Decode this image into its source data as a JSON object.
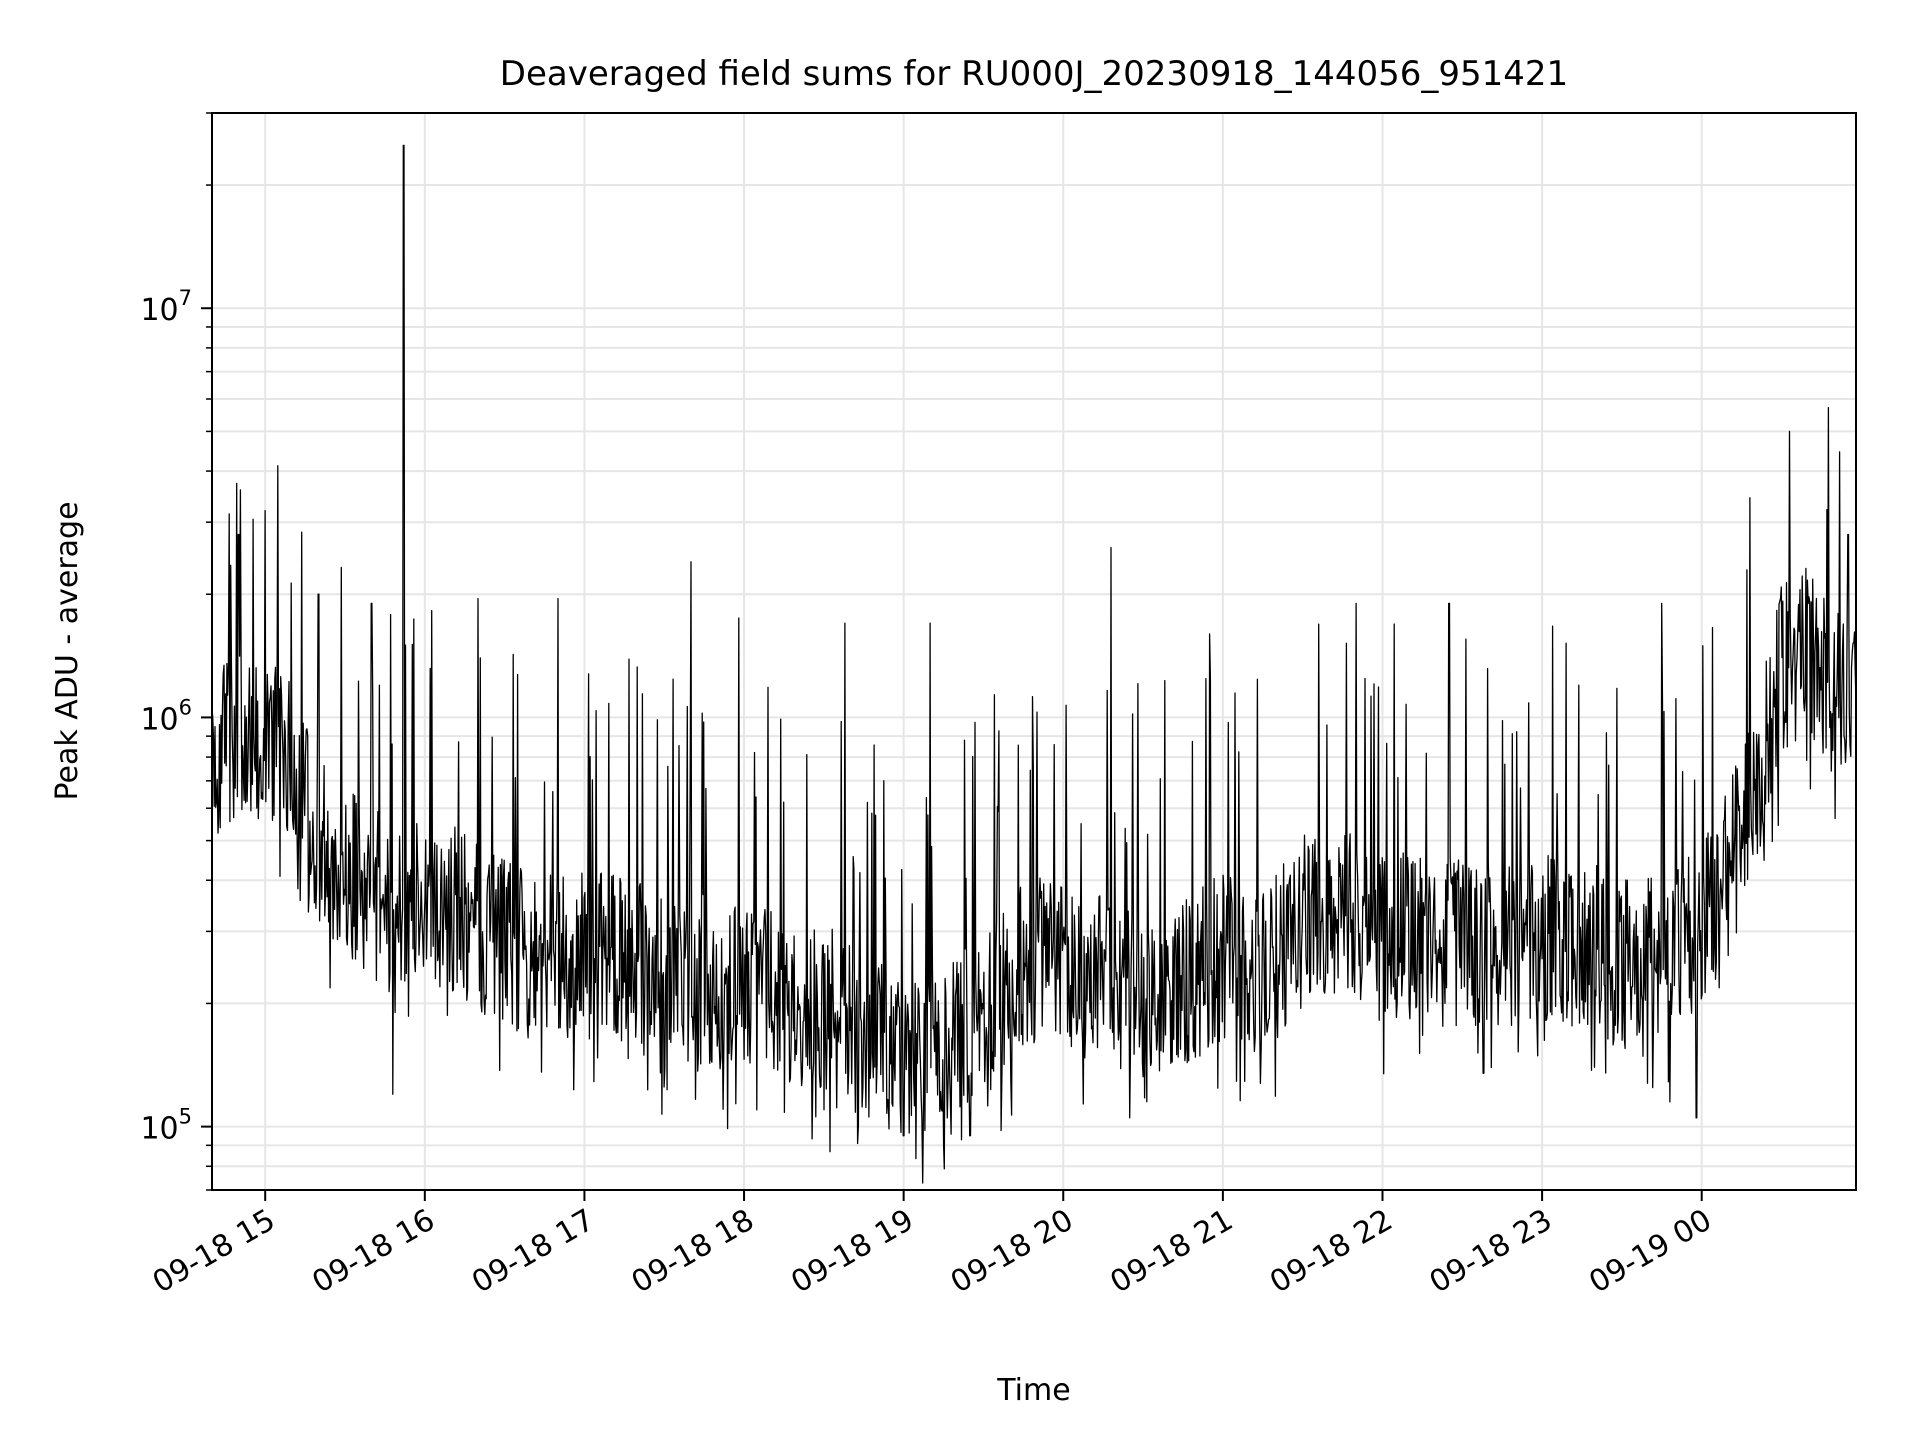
{
  "chart_data": {
    "type": "line",
    "title": "Deaveraged field sums for RU000J_20230918_144056_951421",
    "xlabel": "Time",
    "ylabel": "Peak ADU - average",
    "yscale": "log",
    "ylim": [
      70000,
      30000000
    ],
    "xlim": [
      "2023-09-18 14:40",
      "2023-09-19 00:58"
    ],
    "grid": true,
    "line_color": "#000000",
    "grid_color": "#e6e6e6",
    "x_ticks": [
      {
        "at": "2023-09-18 15:00",
        "label": "09-18 15"
      },
      {
        "at": "2023-09-18 16:00",
        "label": "09-18 16"
      },
      {
        "at": "2023-09-18 17:00",
        "label": "09-18 17"
      },
      {
        "at": "2023-09-18 18:00",
        "label": "09-18 18"
      },
      {
        "at": "2023-09-18 19:00",
        "label": "09-18 19"
      },
      {
        "at": "2023-09-18 20:00",
        "label": "09-18 20"
      },
      {
        "at": "2023-09-18 21:00",
        "label": "09-18 21"
      },
      {
        "at": "2023-09-18 22:00",
        "label": "09-18 22"
      },
      {
        "at": "2023-09-18 23:00",
        "label": "09-18 23"
      },
      {
        "at": "2023-09-19 00:00",
        "label": "09-19 00"
      }
    ],
    "y_ticks": [
      {
        "value": 100000,
        "base": "10",
        "exp": "5"
      },
      {
        "value": 1000000,
        "base": "10",
        "exp": "6"
      },
      {
        "value": 10000000,
        "base": "10",
        "exp": "7"
      }
    ],
    "baseline": [
      [
        "2023-09-18 14:40",
        800000
      ],
      [
        "2023-09-18 14:50",
        950000
      ],
      [
        "2023-09-18 15:00",
        950000
      ],
      [
        "2023-09-18 15:10",
        800000
      ],
      [
        "2023-09-18 15:20",
        500000
      ],
      [
        "2023-09-18 15:30",
        420000
      ],
      [
        "2023-09-18 15:40",
        380000
      ],
      [
        "2023-09-18 15:50",
        320000
      ],
      [
        "2023-09-18 16:00",
        380000
      ],
      [
        "2023-09-18 16:15",
        320000
      ],
      [
        "2023-09-18 16:30",
        280000
      ],
      [
        "2023-09-18 16:45",
        250000
      ],
      [
        "2023-09-18 17:00",
        280000
      ],
      [
        "2023-09-18 17:15",
        250000
      ],
      [
        "2023-09-18 17:30",
        235000
      ],
      [
        "2023-09-18 17:45",
        230000
      ],
      [
        "2023-09-18 18:00",
        215000
      ],
      [
        "2023-09-18 18:15",
        210000
      ],
      [
        "2023-09-18 18:30",
        195000
      ],
      [
        "2023-09-18 18:45",
        165000
      ],
      [
        "2023-09-18 19:00",
        150000
      ],
      [
        "2023-09-18 19:15",
        165000
      ],
      [
        "2023-09-18 19:30",
        180000
      ],
      [
        "2023-09-18 19:45",
        250000
      ],
      [
        "2023-09-18 20:00",
        250000
      ],
      [
        "2023-09-18 20:15",
        225000
      ],
      [
        "2023-09-18 20:30",
        210000
      ],
      [
        "2023-09-18 20:45",
        225000
      ],
      [
        "2023-09-18 21:00",
        260000
      ],
      [
        "2023-09-18 21:15",
        230000
      ],
      [
        "2023-09-18 21:30",
        320000
      ],
      [
        "2023-09-18 21:45",
        330000
      ],
      [
        "2023-09-18 22:00",
        300000
      ],
      [
        "2023-09-18 22:15",
        290000
      ],
      [
        "2023-09-18 22:30",
        280000
      ],
      [
        "2023-09-18 22:45",
        280000
      ],
      [
        "2023-09-18 23:00",
        290000
      ],
      [
        "2023-09-18 23:15",
        280000
      ],
      [
        "2023-09-18 23:30",
        250000
      ],
      [
        "2023-09-18 23:45",
        260000
      ],
      [
        "2023-09-19 00:00",
        320000
      ],
      [
        "2023-09-19 00:10",
        420000
      ],
      [
        "2023-09-19 00:20",
        650000
      ],
      [
        "2023-09-19 00:30",
        1300000
      ],
      [
        "2023-09-19 00:40",
        1450000
      ],
      [
        "2023-09-19 00:50",
        1150000
      ],
      [
        "2023-09-19 00:58",
        1000000
      ]
    ],
    "peaks": [
      [
        "2023-09-18 14:50",
        2800000
      ],
      [
        "2023-09-18 15:00",
        3200000
      ],
      [
        "2023-09-18 15:20",
        2000000
      ],
      [
        "2023-09-18 15:40",
        1900000
      ],
      [
        "2023-09-18 15:52",
        25000000
      ],
      [
        "2023-09-18 16:20",
        1950000
      ],
      [
        "2023-09-18 16:50",
        1950000
      ],
      [
        "2023-09-18 17:40",
        2400000
      ],
      [
        "2023-09-18 17:58",
        1750000
      ],
      [
        "2023-09-18 18:38",
        1700000
      ],
      [
        "2023-09-18 19:10",
        1700000
      ],
      [
        "2023-09-18 20:18",
        2600000
      ],
      [
        "2023-09-18 20:55",
        1600000
      ],
      [
        "2023-09-18 21:50",
        1900000
      ],
      [
        "2023-09-18 22:25",
        1900000
      ],
      [
        "2023-09-18 23:45",
        1900000
      ],
      [
        "2023-09-19 00:33",
        5000000
      ],
      [
        "2023-09-19 00:55",
        2800000
      ]
    ],
    "dips": [
      [
        "2023-09-18 15:48",
        120000
      ],
      [
        "2023-09-18 17:30",
        125000
      ],
      [
        "2023-09-18 18:30",
        110000
      ],
      [
        "2023-09-18 19:00",
        95000
      ],
      [
        "2023-09-18 19:15",
        90000
      ],
      [
        "2023-09-18 19:25",
        95000
      ],
      [
        "2023-09-18 20:25",
        105000
      ],
      [
        "2023-09-18 22:38",
        135000
      ],
      [
        "2023-09-18 23:48",
        115000
      ],
      [
        "2023-09-18 23:58",
        105000
      ]
    ]
  }
}
